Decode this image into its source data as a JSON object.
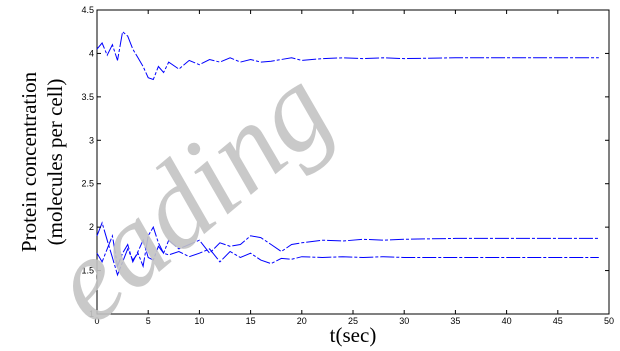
{
  "chart_data": {
    "type": "line",
    "title": "",
    "xlabel": "t(sec)",
    "ylabel_line1": "Protein concentration",
    "ylabel_line2": "(molecules per cell)",
    "xlim": [
      0,
      50
    ],
    "ylim": [
      1,
      4.5
    ],
    "xticks": [
      "0",
      "5",
      "10",
      "15",
      "20",
      "25",
      "30",
      "35",
      "40",
      "45",
      "50"
    ],
    "yticks": [
      "1",
      "1.5",
      "2",
      "2.5",
      "3",
      "3.5",
      "4",
      "4.5"
    ],
    "grid": false,
    "series": [
      {
        "color": "#0000ff",
        "x": [
          0,
          0.5,
          1,
          1.5,
          2,
          2.5,
          3,
          3.5,
          4,
          4.5,
          5,
          5.5,
          6,
          6.5,
          7,
          8,
          9,
          10,
          11,
          12,
          13,
          14,
          15,
          16,
          17,
          18,
          19,
          20,
          22,
          24,
          26,
          28,
          30,
          35,
          40,
          45,
          49
        ],
        "y": [
          4.05,
          4.12,
          3.98,
          4.1,
          3.92,
          4.25,
          4.2,
          4.05,
          3.95,
          3.85,
          3.72,
          3.7,
          3.85,
          3.78,
          3.9,
          3.82,
          3.92,
          3.87,
          3.93,
          3.9,
          3.95,
          3.9,
          3.93,
          3.9,
          3.91,
          3.93,
          3.95,
          3.92,
          3.94,
          3.95,
          3.94,
          3.95,
          3.94,
          3.95,
          3.95,
          3.95,
          3.95
        ]
      },
      {
        "color": "#0000ff",
        "x": [
          0,
          0.5,
          1,
          1.5,
          2,
          2.5,
          3,
          3.5,
          4,
          4.5,
          5,
          5.5,
          6,
          6.5,
          7,
          8,
          9,
          10,
          11,
          12,
          13,
          14,
          15,
          16,
          17,
          18,
          19,
          20,
          22,
          24,
          26,
          28,
          30,
          35,
          40,
          45,
          49
        ],
        "y": [
          1.9,
          2.05,
          1.85,
          1.65,
          1.45,
          1.6,
          1.75,
          1.62,
          1.7,
          1.55,
          1.9,
          2.0,
          1.82,
          1.7,
          1.85,
          1.75,
          1.8,
          1.85,
          1.7,
          1.82,
          1.78,
          1.8,
          1.9,
          1.88,
          1.8,
          1.72,
          1.8,
          1.82,
          1.85,
          1.84,
          1.86,
          1.85,
          1.86,
          1.87,
          1.87,
          1.87,
          1.87
        ]
      },
      {
        "color": "#0000ff",
        "x": [
          0,
          0.5,
          1,
          1.5,
          2,
          2.5,
          3,
          3.5,
          4,
          4.5,
          5,
          5.5,
          6,
          6.5,
          7,
          8,
          9,
          10,
          11,
          12,
          13,
          14,
          15,
          16,
          17,
          18,
          19,
          20,
          22,
          24,
          26,
          28,
          30,
          35,
          40,
          45,
          49
        ],
        "y": [
          1.7,
          1.6,
          1.75,
          1.9,
          1.55,
          1.7,
          1.8,
          1.6,
          1.72,
          1.85,
          1.65,
          1.62,
          1.78,
          1.7,
          1.68,
          1.72,
          1.66,
          1.7,
          1.75,
          1.6,
          1.72,
          1.65,
          1.7,
          1.62,
          1.58,
          1.64,
          1.63,
          1.66,
          1.65,
          1.66,
          1.65,
          1.66,
          1.65,
          1.65,
          1.65,
          1.65,
          1.65
        ]
      }
    ]
  },
  "watermark": "eading"
}
